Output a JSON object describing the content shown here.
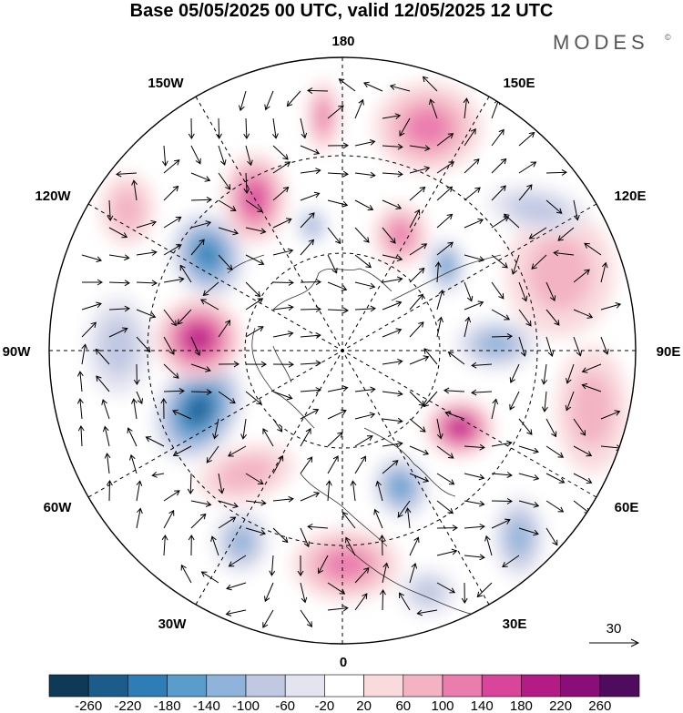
{
  "title": "Base 05/05/2025 00 UTC, valid 12/05/2025 12 UTC",
  "brand": "MODES",
  "brand_mark": "©",
  "longitude_labels": {
    "lon_180": "180",
    "lon_150e": "150E",
    "lon_120e": "120E",
    "lon_90e": "90E",
    "lon_60e": "60E",
    "lon_30e": "30E",
    "lon_0": "0",
    "lon_30w": "30W",
    "lon_60w": "60W",
    "lon_90w": "90W",
    "lon_120w": "120W",
    "lon_150w": "150W"
  },
  "reference_vector": {
    "label": "30"
  },
  "colorbar": {
    "ticks": [
      "-260",
      "-220",
      "-180",
      "-140",
      "-100",
      "-60",
      "-20",
      "20",
      "60",
      "100",
      "140",
      "180",
      "220",
      "260"
    ],
    "colors": [
      "#0f3a57",
      "#1c5c8a",
      "#2e7db7",
      "#5a9dcc",
      "#8fb3da",
      "#c0c8e2",
      "#e4e4f0",
      "#ffffff",
      "#f9dadd",
      "#f3b3c2",
      "#ea7cae",
      "#d8459a",
      "#b51b86",
      "#8a0d7a",
      "#4f0b5e"
    ]
  },
  "anomaly_features": [
    {
      "sign": "neg",
      "level": 4
    },
    {
      "sign": "neg",
      "level": 5
    },
    {
      "sign": "pos",
      "level": 4
    },
    {
      "sign": "pos",
      "level": 3
    },
    {
      "sign": "pos",
      "level": 2
    },
    {
      "sign": "neg",
      "level": 2
    },
    {
      "sign": "pos",
      "level": 2
    },
    {
      "sign": "neg",
      "level": 3
    },
    {
      "sign": "neg",
      "level": 2
    },
    {
      "sign": "pos",
      "level": 4
    },
    {
      "sign": "neg",
      "level": 3
    },
    {
      "sign": "neg",
      "level": 2
    },
    {
      "sign": "pos",
      "level": 1
    },
    {
      "sign": "pos",
      "level": 2
    },
    {
      "sign": "pos",
      "level": 1
    },
    {
      "sign": "neg",
      "level": 1
    },
    {
      "sign": "pos",
      "level": 1
    },
    {
      "sign": "neg",
      "level": 1
    },
    {
      "sign": "neg",
      "level": 2
    },
    {
      "sign": "pos",
      "level": 2
    },
    {
      "sign": "pos",
      "level": 1
    },
    {
      "sign": "neg",
      "level": 1
    }
  ]
}
